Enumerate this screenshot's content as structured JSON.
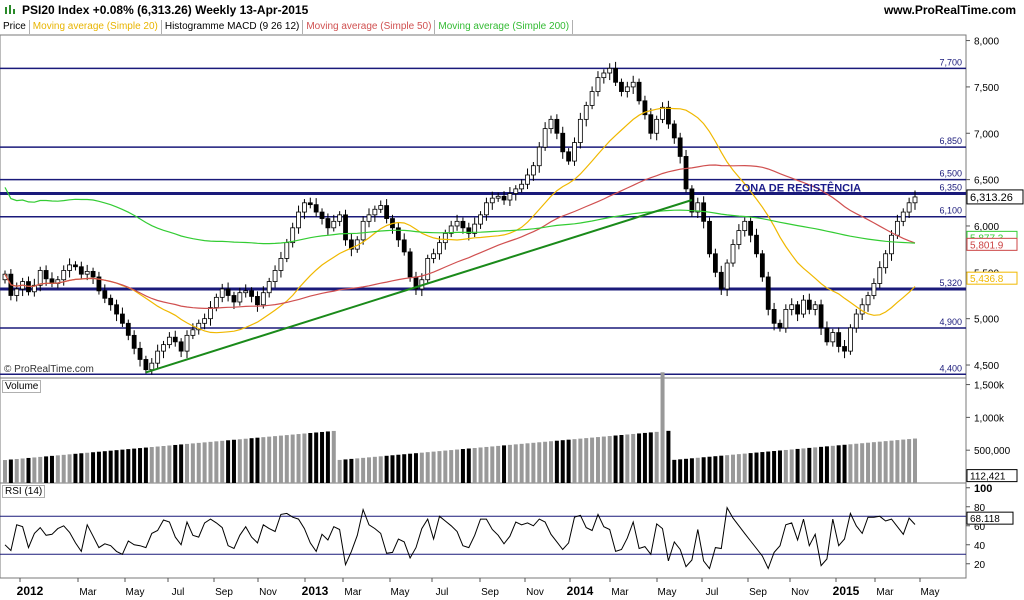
{
  "header": {
    "title": "PSI20 Index   +0.08% (6,313.26)   Weekly   13-Apr-2015",
    "site": "www.ProRealTime.com"
  },
  "legend": {
    "price": "Price",
    "ma20": "Moving average (Simple 20)",
    "macd": "Histogramme MACD (9 26 12)",
    "ma50": "Moving average (Simple 50)",
    "ma200": "Moving average (Simple 200)"
  },
  "copyright": "© ProRealTime.com",
  "volume_label": "Volume",
  "rsi_label": "RSI (14)",
  "chart_data": {
    "type": "candlestick",
    "price_axis": {
      "ticks": [
        4500,
        5000,
        5500,
        6000,
        6500,
        7000,
        7500,
        8000
      ],
      "tick_labels": [
        "4,500",
        "5,000",
        "5,500",
        "6,000",
        "6,500",
        "7,000",
        "7,500",
        "8,000"
      ],
      "ylim": [
        4360,
        8060
      ]
    },
    "x_axis": {
      "labels": [
        "2012",
        "Mar",
        "May",
        "Jul",
        "Sep",
        "Nov",
        "2013",
        "Mar",
        "May",
        "Jul",
        "Sep",
        "Nov",
        "2014",
        "Mar",
        "May",
        "Jul",
        "Sep",
        "Nov",
        "2015",
        "Mar",
        "May"
      ],
      "bold": [
        "2012",
        "2013",
        "2014",
        "2015"
      ]
    },
    "horizontal_levels": [
      {
        "value": 7700,
        "label": "7,700"
      },
      {
        "value": 6850,
        "label": "6,850"
      },
      {
        "value": 6500,
        "label": "6,500"
      },
      {
        "value": 6350,
        "label": "6,350"
      },
      {
        "value": 6100,
        "label": "6,100"
      },
      {
        "value": 5320,
        "label": "5,320"
      },
      {
        "value": 4900,
        "label": "4,900"
      },
      {
        "value": 4400,
        "label": "4,400"
      }
    ],
    "annotation": "ZONA DE RESISTÊNCIA",
    "last_price": {
      "value": 6313.26,
      "label": "6,313.26"
    },
    "ma_values": [
      {
        "name": "Moving average (Simple 200)",
        "value": 5877.3,
        "label": "5,877.3",
        "color": "#33cc33"
      },
      {
        "name": "Moving average (Simple 50)",
        "value": 5801.9,
        "label": "5,801.9",
        "color": "#cc4444"
      },
      {
        "name": "Moving average (Simple 20)",
        "value": 5436.8,
        "label": "5,436.8",
        "color": "#f0b800"
      }
    ],
    "closes": [
      5480,
      5250,
      5320,
      5400,
      5290,
      5360,
      5520,
      5430,
      5380,
      5420,
      5520,
      5580,
      5560,
      5480,
      5510,
      5450,
      5300,
      5220,
      5150,
      5050,
      4950,
      4820,
      4680,
      4560,
      4450,
      4520,
      4650,
      4720,
      4800,
      4750,
      4650,
      4820,
      4880,
      4950,
      5000,
      5120,
      5230,
      5320,
      5250,
      5180,
      5280,
      5300,
      5240,
      5150,
      5280,
      5400,
      5520,
      5650,
      5820,
      5980,
      6150,
      6250,
      6230,
      6150,
      6080,
      5980,
      6050,
      6120,
      5850,
      5750,
      5850,
      6050,
      6120,
      6180,
      6220,
      6080,
      5980,
      5850,
      5720,
      5450,
      5320,
      5420,
      5650,
      5700,
      5820,
      5920,
      6000,
      6050,
      5980,
      5920,
      6020,
      6120,
      6250,
      6300,
      6320,
      6280,
      6350,
      6400,
      6450,
      6550,
      6650,
      6850,
      7050,
      7150,
      7000,
      6800,
      6700,
      6900,
      7150,
      7300,
      7450,
      7600,
      7650,
      7700,
      7550,
      7450,
      7500,
      7550,
      7350,
      7200,
      7000,
      7150,
      7280,
      7100,
      6950,
      6750,
      6400,
      6150,
      6250,
      6050,
      5700,
      5500,
      5320,
      5600,
      5800,
      5950,
      6050,
      5900,
      5700,
      5450,
      5100,
      4950,
      4900,
      5100,
      5150,
      5050,
      5200,
      5100,
      5150,
      4900,
      4750,
      4850,
      4700,
      4650,
      4900,
      5050,
      5150,
      5250,
      5380,
      5550,
      5700,
      5900,
      6050,
      6150,
      6250,
      6313
    ],
    "volume_axis": {
      "ticks": [
        112421,
        500000,
        1000000,
        1500000
      ],
      "tick_labels": [
        "",
        "500,000",
        "1,000k",
        "1,500k"
      ],
      "last_label": "112,421"
    },
    "rsi_axis": {
      "ticks": [
        20,
        40,
        60,
        80,
        100
      ],
      "tick_labels": [
        "20",
        "40",
        "60",
        "80",
        "100"
      ],
      "levels": [
        70,
        30
      ],
      "last_label": "68.118"
    }
  }
}
